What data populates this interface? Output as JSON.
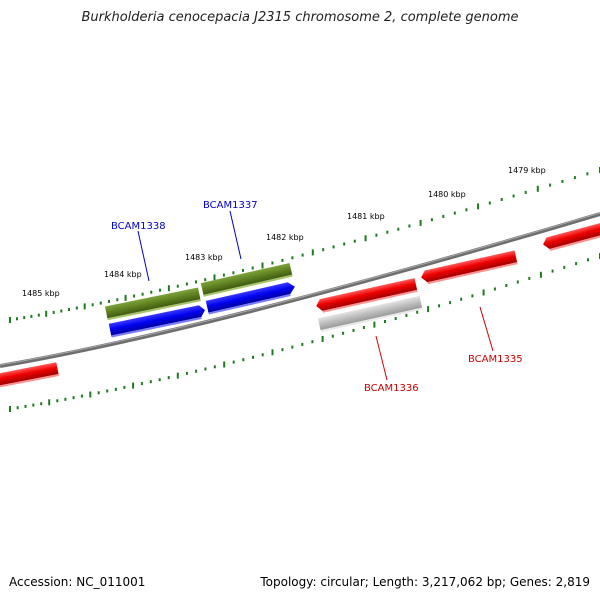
{
  "title": "Burkholderia cenocepacia J2315 chromosome 2, complete genome",
  "footer": {
    "accession": "Accession: NC_011001",
    "summary": "Topology: circular; Length: 3,217,062 bp; Genes: 2,819"
  },
  "colors": {
    "backbone": "#7a7a7a",
    "tick": "#1f7a1f",
    "forward_gene_label": "#0000cc",
    "reverse_gene_label": "#cc0000",
    "olive": "#6b8e23",
    "blue": "#0000ee",
    "red": "#ee0000",
    "grey": "#bdbdbd"
  },
  "ticks": [
    {
      "label": "1479 kbp"
    },
    {
      "label": "1480 kbp"
    },
    {
      "label": "1481 kbp"
    },
    {
      "label": "1482 kbp"
    },
    {
      "label": "1483 kbp"
    },
    {
      "label": "1484 kbp"
    },
    {
      "label": "1485 kbp"
    }
  ],
  "genes": [
    {
      "name": "BCAM1338",
      "strand": "forward"
    },
    {
      "name": "BCAM1337",
      "strand": "forward"
    },
    {
      "name": "BCAM1336",
      "strand": "reverse"
    },
    {
      "name": "BCAM1335",
      "strand": "reverse"
    }
  ]
}
